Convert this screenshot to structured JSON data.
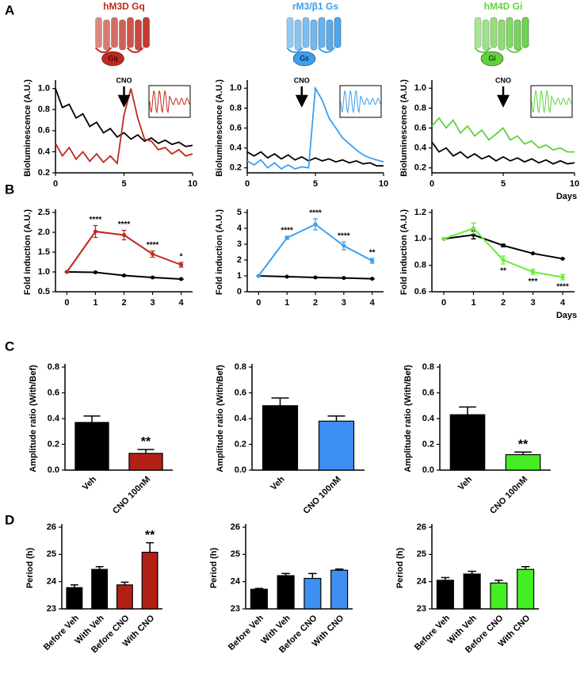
{
  "panel_labels": [
    "A",
    "B",
    "C",
    "D"
  ],
  "chart_data": [
    {
      "type": "line",
      "title": "hM3D Gq",
      "icon_label": "Gq",
      "ylabel": "Bioluminescence (A.U.)",
      "annotation": "CNO",
      "annotation_x": 5,
      "x": [
        0,
        0.5,
        1,
        1.5,
        2,
        2.5,
        3,
        3.5,
        4,
        4.5,
        5,
        5.5,
        6,
        6.5,
        7,
        7.5,
        8,
        8.5,
        9,
        9.5,
        10
      ],
      "xlim": [
        0,
        10
      ],
      "xticks": [
        0,
        5,
        10
      ],
      "ylim": [
        0.2,
        1.05
      ],
      "yticks": [
        0.2,
        0.4,
        0.6,
        0.8,
        {
          "value": 1,
          "label": "1.0"
        }
      ],
      "series": [
        {
          "color": "#000000",
          "values": [
            1.0,
            0.82,
            0.85,
            0.72,
            0.76,
            0.64,
            0.68,
            0.58,
            0.62,
            0.54,
            0.58,
            0.52,
            0.56,
            0.5,
            0.53,
            0.48,
            0.51,
            0.47,
            0.49,
            0.45,
            0.46
          ]
        },
        {
          "color": "#c0281c",
          "values": [
            0.48,
            0.36,
            0.44,
            0.33,
            0.4,
            0.31,
            0.38,
            0.3,
            0.36,
            0.29,
            0.75,
            1.0,
            0.72,
            0.52,
            0.5,
            0.42,
            0.44,
            0.38,
            0.42,
            0.36,
            0.38
          ]
        }
      ]
    },
    {
      "type": "line",
      "title": "rM3/β1 Gs",
      "icon_label": "Gs",
      "ylabel": "Bioluminescence (A.U.)",
      "annotation": "CNO",
      "annotation_x": 4,
      "x": [
        0,
        0.5,
        1,
        1.5,
        2,
        2.5,
        3,
        3.5,
        4,
        4.5,
        5,
        5.5,
        6,
        6.5,
        7,
        7.5,
        8,
        8.5,
        9,
        9.5,
        10
      ],
      "xlim": [
        0,
        10
      ],
      "xticks": [
        0,
        5,
        10
      ],
      "ylim": [
        0.15,
        1.05
      ],
      "yticks": [
        0.2,
        0.4,
        0.6,
        0.8,
        {
          "value": 1,
          "label": "1.0"
        }
      ],
      "series": [
        {
          "color": "#000000",
          "values": [
            0.36,
            0.32,
            0.36,
            0.3,
            0.34,
            0.29,
            0.33,
            0.28,
            0.31,
            0.27,
            0.3,
            0.27,
            0.29,
            0.26,
            0.28,
            0.25,
            0.27,
            0.24,
            0.25,
            0.22,
            0.22
          ]
        },
        {
          "color": "#3a9ff0",
          "values": [
            0.27,
            0.23,
            0.28,
            0.2,
            0.25,
            0.19,
            0.23,
            0.19,
            0.21,
            0.2,
            1.0,
            0.88,
            0.7,
            0.6,
            0.5,
            0.44,
            0.38,
            0.33,
            0.3,
            0.28,
            0.26
          ]
        }
      ]
    },
    {
      "type": "line",
      "title": "hM4D Gi",
      "icon_label": "Gi",
      "ylabel": "Bioluminescence (A.U.)",
      "xlabel": "Days",
      "annotation": "CNO",
      "annotation_x": 5,
      "x": [
        0,
        0.5,
        1,
        1.5,
        2,
        2.5,
        3,
        3.5,
        4,
        4.5,
        5,
        5.5,
        6,
        6.5,
        7,
        7.5,
        8,
        8.5,
        9,
        9.5,
        10
      ],
      "xlim": [
        0,
        10
      ],
      "xticks": [
        0,
        5,
        10
      ],
      "ylim": [
        0.15,
        1.05
      ],
      "yticks": [
        0.2,
        0.4,
        0.6,
        0.8,
        {
          "value": 1,
          "label": "1.0"
        }
      ],
      "series": [
        {
          "color": "#000000",
          "values": [
            0.46,
            0.36,
            0.4,
            0.32,
            0.36,
            0.3,
            0.34,
            0.29,
            0.32,
            0.27,
            0.31,
            0.27,
            0.3,
            0.26,
            0.29,
            0.25,
            0.28,
            0.24,
            0.27,
            0.24,
            0.25
          ]
        },
        {
          "color": "#5fd23a",
          "values": [
            0.62,
            0.7,
            0.6,
            0.68,
            0.55,
            0.62,
            0.52,
            0.58,
            0.48,
            0.54,
            0.6,
            0.48,
            0.52,
            0.44,
            0.47,
            0.4,
            0.43,
            0.38,
            0.4,
            0.36,
            0.36
          ]
        }
      ]
    },
    {
      "type": "errline",
      "ylabel": "Fold induction (A.U.)",
      "x": [
        0,
        1,
        2,
        3,
        4
      ],
      "xlim": [
        -0.4,
        4.4
      ],
      "xticks": [
        0,
        1,
        2,
        3,
        4
      ],
      "ylim": [
        0.5,
        2.5
      ],
      "yticks": [
        0.5,
        {
          "value": 1,
          "label": "1.0"
        },
        1.5,
        {
          "value": 2,
          "label": "2.0"
        },
        2.5
      ],
      "sig_side": "above",
      "series": [
        {
          "color": "#000000",
          "values": [
            1.0,
            0.99,
            0.91,
            0.86,
            0.82
          ],
          "errors": [
            0,
            0.01,
            0.01,
            0.01,
            0.01
          ]
        },
        {
          "color": "#c0281c",
          "values": [
            1.0,
            2.02,
            1.93,
            1.45,
            1.18
          ],
          "errors": [
            0,
            0.15,
            0.12,
            0.08,
            0.06
          ],
          "significance": [
            null,
            "****",
            "****",
            "****",
            "*"
          ]
        }
      ]
    },
    {
      "type": "errline",
      "ylabel": "Fold induction (A.U.)",
      "x": [
        0,
        1,
        2,
        3,
        4
      ],
      "xlim": [
        -0.4,
        4.4
      ],
      "xticks": [
        0,
        1,
        2,
        3,
        4
      ],
      "ylim": [
        0,
        5
      ],
      "yticks": [
        0,
        1,
        2,
        3,
        4,
        5
      ],
      "sig_side": "above",
      "series": [
        {
          "color": "#000000",
          "values": [
            1.0,
            0.95,
            0.9,
            0.87,
            0.82
          ],
          "errors": [
            0,
            0.02,
            0.02,
            0.02,
            0.02
          ]
        },
        {
          "color": "#3a9ff0",
          "values": [
            1.0,
            3.4,
            4.25,
            2.9,
            1.95
          ],
          "errors": [
            0,
            0.1,
            0.35,
            0.25,
            0.15
          ],
          "significance": [
            null,
            "****",
            "****",
            "****",
            "**"
          ]
        }
      ]
    },
    {
      "type": "errline",
      "ylabel": "Fold induction (A.U.)",
      "xlabel": "Days",
      "x": [
        0,
        1,
        2,
        3,
        4
      ],
      "xlim": [
        -0.4,
        4.4
      ],
      "xticks": [
        0,
        1,
        2,
        3,
        4
      ],
      "ylim": [
        0.6,
        1.2
      ],
      "yticks": [
        0.6,
        0.8,
        {
          "value": 1,
          "label": "1.0"
        },
        1.2
      ],
      "sig_side": "below",
      "series": [
        {
          "color": "#000000",
          "values": [
            1.0,
            1.03,
            0.95,
            0.89,
            0.85
          ],
          "errors": [
            0,
            0.03,
            0.01,
            0,
            0
          ]
        },
        {
          "color": "#66ee33",
          "values": [
            1.0,
            1.08,
            0.84,
            0.75,
            0.71
          ],
          "errors": [
            0,
            0.04,
            0.03,
            0.02,
            0.02
          ],
          "significance": [
            null,
            null,
            "**",
            "***",
            "****"
          ]
        }
      ]
    },
    {
      "type": "bar",
      "ylabel": "Amplitude ratio (With/Bef)",
      "categories": [
        "Veh",
        "CNO 100nM"
      ],
      "values": [
        0.37,
        0.13
      ],
      "errors": [
        0.05,
        0.03
      ],
      "colors": [
        "#000000",
        "#b22016"
      ],
      "significance": [
        null,
        "**"
      ],
      "ylim": [
        0,
        0.8
      ],
      "yticks": [
        {
          "value": 0,
          "label": "0.0"
        },
        0.2,
        0.4,
        0.6,
        0.8
      ]
    },
    {
      "type": "bar",
      "ylabel": "Amplitude ratio (With/Bef)",
      "categories": [
        "Veh",
        "CNO 100nM"
      ],
      "values": [
        0.5,
        0.38
      ],
      "errors": [
        0.06,
        0.04
      ],
      "colors": [
        "#000000",
        "#3d8ff2"
      ],
      "significance": [
        null,
        null
      ],
      "ylim": [
        0,
        0.8
      ],
      "yticks": [
        {
          "value": 0,
          "label": "0.0"
        },
        0.2,
        0.4,
        0.6,
        0.8
      ]
    },
    {
      "type": "bar",
      "ylabel": "Amplitude ratio (With/Bef)",
      "categories": [
        "Veh",
        "CNO 100nM"
      ],
      "values": [
        0.43,
        0.12
      ],
      "errors": [
        0.06,
        0.02
      ],
      "colors": [
        "#000000",
        "#44ee22"
      ],
      "significance": [
        null,
        "**"
      ],
      "ylim": [
        0,
        0.8
      ],
      "yticks": [
        {
          "value": 0,
          "label": "0.0"
        },
        0.2,
        0.4,
        0.6,
        0.8
      ]
    },
    {
      "type": "bar",
      "ylabel": "Period (h)",
      "categories": [
        "Before Veh",
        "With Veh",
        "Before CNO",
        "With CNO"
      ],
      "values": [
        23.78,
        24.45,
        23.88,
        25.08
      ],
      "errors": [
        0.1,
        0.1,
        0.1,
        0.35
      ],
      "colors": [
        "#000000",
        "#000000",
        "#b22016",
        "#b22016"
      ],
      "significance": [
        null,
        null,
        null,
        "**"
      ],
      "ylim": [
        23,
        26
      ],
      "yticks": [
        23,
        24,
        25,
        26
      ]
    },
    {
      "type": "bar",
      "ylabel": "Period (h)",
      "categories": [
        "Before Veh",
        "With Veh",
        "Before CNO",
        "With CNO"
      ],
      "values": [
        23.72,
        24.22,
        24.12,
        24.42
      ],
      "errors": [
        0.03,
        0.08,
        0.18,
        0.04
      ],
      "colors": [
        "#000000",
        "#000000",
        "#3d8ff2",
        "#3d8ff2"
      ],
      "significance": [
        null,
        null,
        null,
        null
      ],
      "ylim": [
        23,
        26
      ],
      "yticks": [
        23,
        24,
        25,
        26
      ]
    },
    {
      "type": "bar",
      "ylabel": "Period (h)",
      "categories": [
        "Before Veh",
        "With Veh",
        "Before CNO",
        "With CNO"
      ],
      "values": [
        24.05,
        24.28,
        23.95,
        24.45
      ],
      "errors": [
        0.1,
        0.1,
        0.1,
        0.1
      ],
      "colors": [
        "#000000",
        "#000000",
        "#44ee22",
        "#44ee22"
      ],
      "significance": [
        null,
        null,
        null,
        null
      ],
      "ylim": [
        23,
        26
      ],
      "yticks": [
        23,
        24,
        25,
        26
      ]
    }
  ]
}
